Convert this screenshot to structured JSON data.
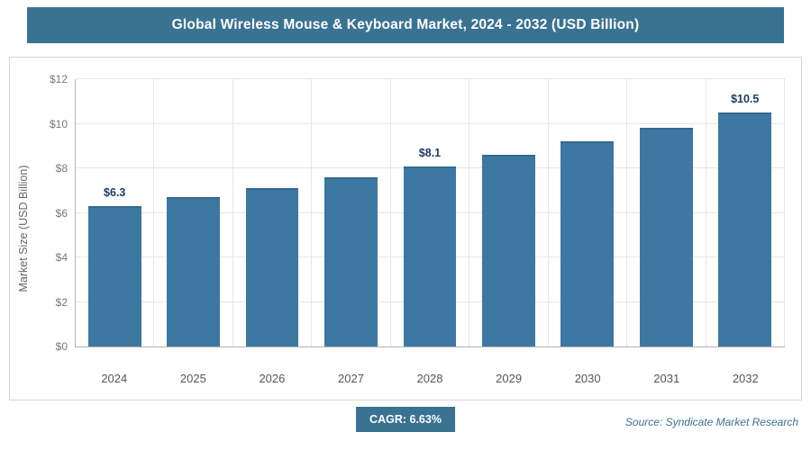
{
  "header": {
    "title": "Global Wireless Mouse & Keyboard Market, 2024 - 2032 (USD Billion)"
  },
  "chart_data": {
    "type": "bar",
    "title": "Global Wireless Mouse & Keyboard Market, 2024 - 2032 (USD Billion)",
    "categories": [
      "2024",
      "2025",
      "2026",
      "2027",
      "2028",
      "2029",
      "2030",
      "2031",
      "2032"
    ],
    "values": [
      6.3,
      6.7,
      7.1,
      7.6,
      8.1,
      8.6,
      9.2,
      9.8,
      10.5
    ],
    "bar_labels": [
      "$6.3",
      "",
      "",
      "",
      "$8.1",
      "",
      "",
      "",
      "$10.5"
    ],
    "ylabel": "Market Size (USD Billion)",
    "xlabel": "",
    "ylim": [
      0,
      12
    ],
    "yticks": [
      {
        "label": "$0",
        "value": 0
      },
      {
        "label": "$2",
        "value": 2
      },
      {
        "label": "$4",
        "value": 4
      },
      {
        "label": "$6",
        "value": 6
      },
      {
        "label": "$8",
        "value": 8
      },
      {
        "label": "$10",
        "value": 10
      },
      {
        "label": "$12",
        "value": 12
      }
    ],
    "grid": true,
    "legend": "none"
  },
  "footer": {
    "cagr_badge": "CAGR: 6.63%",
    "source": "Source: Syndicate Market Research"
  },
  "colors": {
    "accent": "#3a7292",
    "bar": "#3d78a2",
    "bar_value_label": "#1b3b5f"
  }
}
